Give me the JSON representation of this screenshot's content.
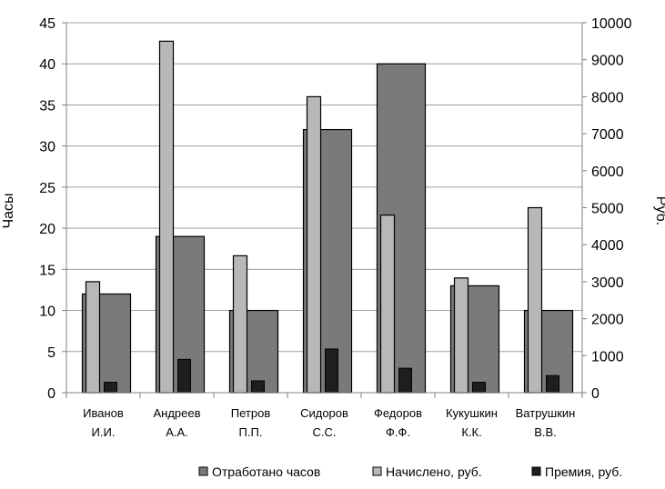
{
  "chart_data": {
    "type": "bar",
    "categories": [
      [
        "Иванов",
        "И.И."
      ],
      [
        "Андреев",
        "А.А."
      ],
      [
        "Петров",
        "П.П."
      ],
      [
        "Сидоров",
        "С.С."
      ],
      [
        "Федоров",
        "Ф.Ф."
      ],
      [
        "Кукушкин",
        "К.К."
      ],
      [
        "Ватрушкин",
        "В.В."
      ]
    ],
    "ylabel": "Часы",
    "y2label": "Руб.",
    "ylim": [
      0,
      45
    ],
    "y2lim": [
      0,
      10000
    ],
    "yticks": [
      0,
      5,
      10,
      15,
      20,
      25,
      30,
      35,
      40,
      45
    ],
    "y2ticks": [
      0,
      1000,
      2000,
      3000,
      4000,
      5000,
      6000,
      7000,
      8000,
      9000,
      10000
    ],
    "grid": true,
    "legend": "bottom-right",
    "series": [
      {
        "name": "Отработано часов",
        "axis": "left",
        "color": "#7a7a7a",
        "values": [
          12,
          19,
          10,
          32,
          40,
          13,
          10
        ]
      },
      {
        "name": "Начислено, руб.",
        "axis": "right",
        "color": "#b8b8b8",
        "values": [
          3000,
          9500,
          3700,
          8000,
          4800,
          3100,
          5000
        ]
      },
      {
        "name": "Премия, руб.",
        "axis": "right",
        "color": "#1e1e1e",
        "values": [
          280,
          900,
          320,
          1180,
          660,
          280,
          460
        ]
      }
    ]
  }
}
